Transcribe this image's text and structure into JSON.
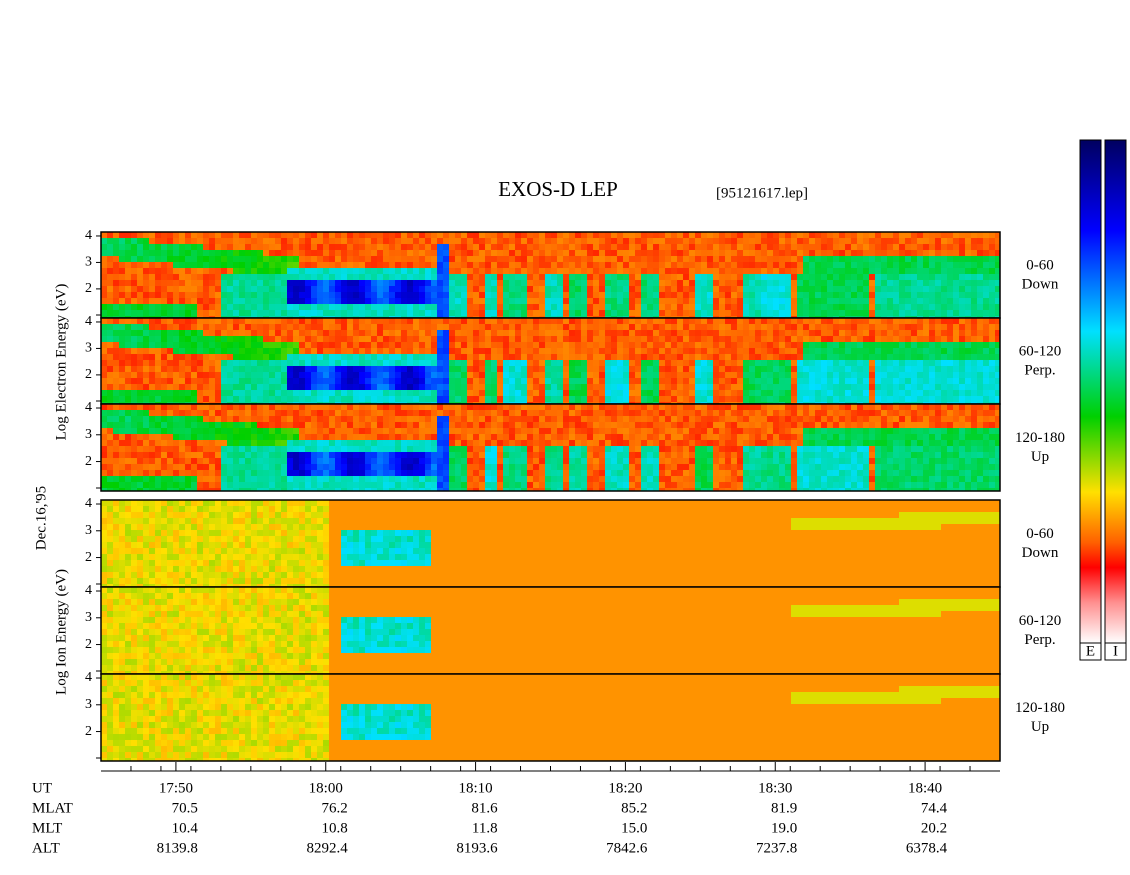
{
  "title": "EXOS-D LEP",
  "file": "[95121617.lep]",
  "date_label": "Dec.16,'95",
  "electron": {
    "ylabel": "Log Electron Energy (eV)",
    "ylim": [
      0.9,
      4.15
    ],
    "yticks": [
      2,
      3,
      4
    ],
    "panels": [
      {
        "range": "0-60",
        "direction": "Down"
      },
      {
        "range": "60-120",
        "direction": "Perp."
      },
      {
        "range": "120-180",
        "direction": "Up"
      }
    ]
  },
  "ion": {
    "ylabel": "Log Ion Energy (eV)",
    "ylim": [
      0.9,
      4.15
    ],
    "yticks": [
      2,
      3,
      4
    ],
    "panels": [
      {
        "range": "0-60",
        "direction": "Down"
      },
      {
        "range": "60-120",
        "direction": "Perp."
      },
      {
        "range": "120-180",
        "direction": "Up"
      }
    ]
  },
  "time_axis": {
    "name": "UT",
    "xlim": [
      "17:45",
      "18:45"
    ],
    "ticks": [
      "17:50",
      "18:00",
      "18:10",
      "18:20",
      "18:30",
      "18:40"
    ]
  },
  "orbit": [
    {
      "name": "MLAT",
      "values": [
        "70.5",
        "76.2",
        "81.6",
        "85.2",
        "81.9",
        "74.4"
      ]
    },
    {
      "name": "MLT",
      "values": [
        "10.4",
        "10.8",
        "11.8",
        "15.0",
        "19.0",
        "20.2"
      ]
    },
    {
      "name": "ALT",
      "values": [
        "8139.8",
        "8292.4",
        "8193.6",
        "7842.6",
        "7237.8",
        "6378.4"
      ]
    }
  ],
  "colorbar_labels": [
    "E",
    "I"
  ]
}
